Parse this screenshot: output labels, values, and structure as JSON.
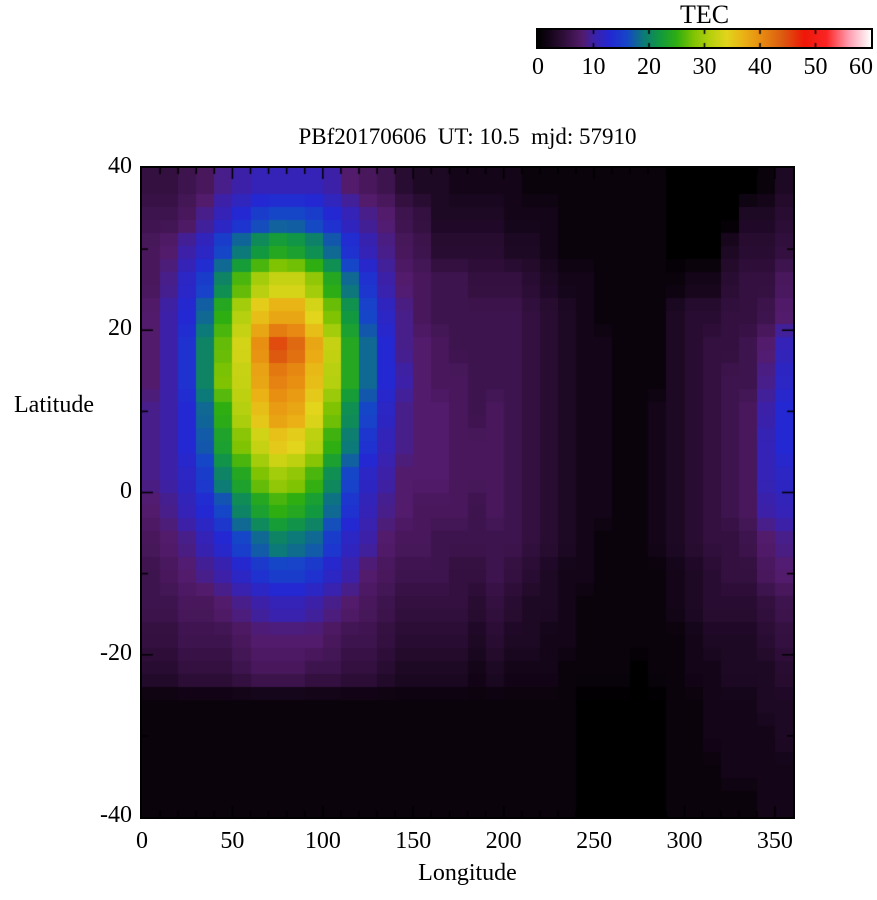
{
  "header": {
    "title": "PBf20170606  UT: 10.5  mjd: 57910"
  },
  "colorbar": {
    "title": "TEC",
    "min": 0,
    "max": 60,
    "tick_values": [
      0,
      10,
      20,
      30,
      40,
      50,
      60
    ],
    "tick_labels": [
      "0",
      "10",
      "20",
      "30",
      "40",
      "50",
      "60"
    ],
    "notch_values": [
      10,
      20,
      30,
      40,
      50
    ],
    "stops": [
      [
        0,
        "#000000"
      ],
      [
        2,
        "#140518"
      ],
      [
        5,
        "#33103f"
      ],
      [
        8,
        "#531b6b"
      ],
      [
        10,
        "#3c21a8"
      ],
      [
        13,
        "#2328d2"
      ],
      [
        16,
        "#1646c8"
      ],
      [
        19,
        "#0c7a78"
      ],
      [
        22,
        "#12993f"
      ],
      [
        25,
        "#2fae12"
      ],
      [
        28,
        "#7fc303"
      ],
      [
        31,
        "#b5d00e"
      ],
      [
        34,
        "#e2d51c"
      ],
      [
        37,
        "#eab215"
      ],
      [
        40,
        "#e88f12"
      ],
      [
        44,
        "#dc5c10"
      ],
      [
        48,
        "#ee1708"
      ],
      [
        52,
        "#fb2525"
      ],
      [
        56,
        "#ff9db0"
      ],
      [
        60,
        "#ffffff"
      ]
    ]
  },
  "axes": {
    "x": {
      "label": "Longitude",
      "min": 0,
      "max": 360,
      "major_tick_step": 50,
      "minor_tick_step": 10,
      "tick_values": [
        0,
        50,
        100,
        150,
        200,
        250,
        300,
        350
      ],
      "tick_labels": [
        "0",
        "50",
        "100",
        "150",
        "200",
        "250",
        "300",
        "350"
      ]
    },
    "y": {
      "label": "Latitude",
      "min": -40,
      "max": 40,
      "major_tick_step": 20,
      "minor_tick_step": 10,
      "tick_values": [
        40,
        20,
        0,
        -20,
        -40
      ],
      "tick_labels": [
        "40",
        "20",
        "0",
        "-20",
        "-40"
      ]
    }
  },
  "chart_data": {
    "type": "heatmap",
    "title": "PBf20170606  UT: 10.5  mjd: 57910",
    "xlabel": "Longitude",
    "ylabel": "Latitude",
    "value_label": "TEC",
    "xlim": [
      0,
      360
    ],
    "ylim": [
      -40,
      40
    ],
    "zlim": [
      0,
      60
    ],
    "lat_order": "north_to_south",
    "lon_centers": [
      5,
      15,
      25,
      35,
      45,
      55,
      65,
      75,
      85,
      95,
      105,
      115,
      125,
      135,
      145,
      155,
      165,
      175,
      185,
      195,
      205,
      215,
      225,
      235,
      245,
      255,
      265,
      275,
      285,
      295,
      305,
      315,
      325,
      335,
      345,
      355
    ],
    "lat_centers": [
      38,
      34,
      30,
      26,
      22,
      18,
      14,
      10,
      6,
      2,
      -2,
      -6,
      -10,
      -14,
      -18,
      -22,
      -26,
      -30,
      -34,
      -38
    ],
    "grid": [
      [
        5,
        5,
        6,
        7,
        9,
        10,
        11,
        11,
        11,
        11,
        10,
        8,
        7,
        6,
        4,
        3,
        3,
        2,
        2,
        2,
        2,
        1,
        1,
        1,
        1,
        1,
        1,
        1,
        1,
        0,
        0,
        0,
        0,
        0,
        1,
        3
      ],
      [
        6,
        6,
        7,
        9,
        11,
        13,
        15,
        16,
        16,
        15,
        13,
        11,
        9,
        8,
        6,
        5,
        3,
        3,
        3,
        3,
        2,
        2,
        2,
        1,
        1,
        1,
        1,
        1,
        1,
        0,
        0,
        0,
        0,
        3,
        3,
        4
      ],
      [
        7,
        8,
        10,
        12,
        16,
        19,
        22,
        24,
        23,
        21,
        18,
        14,
        11,
        9,
        7,
        6,
        4,
        4,
        4,
        4,
        3,
        3,
        2,
        1,
        1,
        1,
        1,
        1,
        1,
        0,
        0,
        0,
        3,
        4,
        4,
        5
      ],
      [
        7,
        9,
        12,
        15,
        20,
        26,
        30,
        32,
        32,
        29,
        24,
        18,
        14,
        10,
        8,
        7,
        6,
        6,
        5,
        5,
        5,
        4,
        3,
        2,
        2,
        1,
        1,
        1,
        1,
        1,
        2,
        2,
        4,
        5,
        5,
        7
      ],
      [
        8,
        10,
        13,
        18,
        25,
        31,
        36,
        38,
        38,
        34,
        28,
        22,
        16,
        12,
        9,
        7,
        6,
        6,
        6,
        6,
        6,
        5,
        4,
        3,
        2,
        1,
        1,
        1,
        1,
        3,
        4,
        4,
        5,
        5,
        6,
        8
      ],
      [
        8,
        10,
        14,
        20,
        27,
        33,
        40,
        45,
        43,
        38,
        32,
        24,
        18,
        13,
        9,
        8,
        7,
        6,
        6,
        6,
        6,
        5,
        4,
        3,
        2,
        2,
        1,
        1,
        1,
        3,
        4,
        5,
        5,
        6,
        8,
        11
      ],
      [
        8,
        10,
        14,
        20,
        28,
        32,
        38,
        41,
        40,
        36,
        31,
        24,
        18,
        13,
        10,
        8,
        7,
        7,
        6,
        6,
        6,
        5,
        4,
        3,
        2,
        2,
        1,
        1,
        1,
        3,
        4,
        5,
        6,
        6,
        9,
        12
      ],
      [
        9,
        10,
        13,
        18,
        25,
        31,
        36,
        39,
        38,
        34,
        28,
        21,
        16,
        12,
        9,
        8,
        8,
        7,
        6,
        7,
        6,
        5,
        4,
        3,
        2,
        2,
        1,
        1,
        2,
        3,
        4,
        5,
        6,
        7,
        10,
        13
      ],
      [
        9,
        10,
        13,
        17,
        23,
        28,
        32,
        35,
        34,
        31,
        25,
        19,
        14,
        11,
        9,
        8,
        8,
        7,
        7,
        7,
        6,
        5,
        4,
        3,
        2,
        2,
        1,
        1,
        2,
        3,
        4,
        5,
        6,
        7,
        11,
        13
      ],
      [
        9,
        10,
        12,
        15,
        20,
        24,
        28,
        30,
        29,
        26,
        21,
        16,
        12,
        10,
        8,
        8,
        8,
        7,
        7,
        7,
        6,
        5,
        4,
        3,
        2,
        2,
        1,
        1,
        2,
        3,
        4,
        5,
        6,
        7,
        11,
        12
      ],
      [
        8,
        9,
        11,
        13,
        16,
        20,
        23,
        25,
        24,
        22,
        18,
        14,
        11,
        9,
        8,
        7,
        7,
        7,
        6,
        7,
        6,
        5,
        4,
        3,
        2,
        2,
        1,
        1,
        2,
        3,
        4,
        5,
        6,
        7,
        10,
        11
      ],
      [
        7,
        8,
        9,
        11,
        13,
        16,
        18,
        20,
        19,
        18,
        15,
        12,
        10,
        8,
        7,
        7,
        6,
        6,
        6,
        6,
        6,
        5,
        4,
        3,
        2,
        1,
        1,
        1,
        2,
        3,
        4,
        5,
        5,
        6,
        8,
        9
      ],
      [
        6,
        7,
        8,
        9,
        10,
        12,
        14,
        15,
        15,
        14,
        12,
        10,
        8,
        7,
        6,
        6,
        6,
        5,
        5,
        6,
        5,
        4,
        3,
        2,
        2,
        1,
        1,
        1,
        1,
        2,
        3,
        4,
        5,
        5,
        7,
        8
      ],
      [
        6,
        6,
        7,
        7,
        8,
        9,
        10,
        11,
        11,
        10,
        9,
        8,
        7,
        6,
        5,
        5,
        5,
        5,
        4,
        5,
        4,
        3,
        3,
        2,
        1,
        1,
        1,
        1,
        1,
        2,
        3,
        4,
        4,
        4,
        5,
        6
      ],
      [
        5,
        5,
        6,
        6,
        6,
        7,
        8,
        8,
        8,
        8,
        7,
        6,
        6,
        5,
        4,
        4,
        4,
        4,
        3,
        4,
        3,
        3,
        2,
        2,
        1,
        1,
        1,
        1,
        1,
        1,
        2,
        3,
        3,
        3,
        4,
        5
      ],
      [
        4,
        4,
        5,
        5,
        5,
        6,
        7,
        7,
        7,
        6,
        6,
        5,
        5,
        4,
        3,
        3,
        3,
        3,
        2,
        3,
        2,
        2,
        2,
        1,
        1,
        1,
        1,
        0,
        1,
        1,
        2,
        2,
        3,
        3,
        3,
        4
      ],
      [
        1,
        1,
        1,
        1,
        1,
        1,
        1,
        1,
        1,
        1,
        1,
        1,
        1,
        1,
        1,
        1,
        1,
        1,
        1,
        1,
        1,
        1,
        1,
        1,
        0,
        0,
        0,
        0,
        0,
        1,
        1,
        2,
        2,
        2,
        3,
        3
      ],
      [
        1,
        1,
        1,
        1,
        1,
        1,
        1,
        1,
        1,
        1,
        1,
        1,
        1,
        1,
        1,
        1,
        1,
        1,
        1,
        1,
        1,
        1,
        1,
        1,
        0,
        0,
        0,
        0,
        0,
        1,
        1,
        2,
        2,
        2,
        2,
        3
      ],
      [
        1,
        1,
        1,
        1,
        1,
        1,
        1,
        1,
        1,
        1,
        1,
        1,
        1,
        1,
        1,
        1,
        1,
        1,
        1,
        1,
        1,
        1,
        1,
        1,
        0,
        0,
        0,
        0,
        0,
        1,
        1,
        1,
        2,
        2,
        2,
        2
      ],
      [
        1,
        1,
        1,
        1,
        1,
        1,
        1,
        1,
        1,
        1,
        1,
        1,
        1,
        1,
        1,
        1,
        1,
        1,
        1,
        1,
        1,
        1,
        1,
        1,
        0,
        0,
        0,
        0,
        0,
        1,
        1,
        1,
        1,
        1,
        2,
        2
      ]
    ]
  }
}
